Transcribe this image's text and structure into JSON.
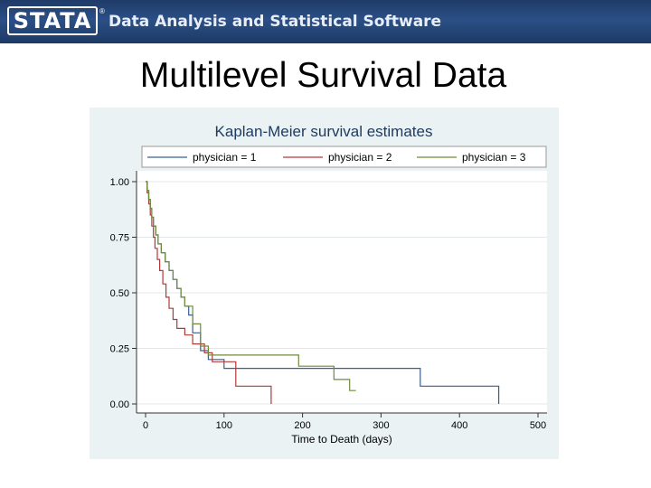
{
  "banner": {
    "logo_text": "STATA",
    "registered_mark": "®",
    "tagline": "Data Analysis and Statistical Software"
  },
  "slide": {
    "title": "Multilevel Survival Data"
  },
  "colors": {
    "banner": "#2b4f86",
    "physician_1": "#3a5f8f",
    "physician_2": "#b03a3a",
    "physician_3": "#6e8b3d",
    "plot_region": "#ffffff",
    "graph_region": "#eaf2f3"
  },
  "chart_data": {
    "type": "line",
    "title": "Kaplan-Meier survival estimates",
    "xlabel": "Time to Death (days)",
    "ylabel": "",
    "xlim": [
      0,
      500
    ],
    "ylim": [
      0,
      1
    ],
    "xticks": [
      0,
      100,
      200,
      300,
      400,
      500
    ],
    "yticks": [
      0,
      0.25,
      0.5,
      0.75,
      1
    ],
    "xtick_labels": [
      "0",
      "100",
      "200",
      "300",
      "400",
      "500"
    ],
    "ytick_labels": [
      "0.00",
      "0.25",
      "0.50",
      "0.75",
      "1.00"
    ],
    "grid": true,
    "legend": "top",
    "series": [
      {
        "name": "physician = 1",
        "x": [
          0,
          2,
          4,
          6,
          8,
          10,
          13,
          16,
          20,
          25,
          30,
          35,
          40,
          45,
          50,
          55,
          60,
          70,
          80,
          100,
          120,
          350,
          450
        ],
        "y": [
          1.0,
          0.96,
          0.92,
          0.88,
          0.84,
          0.8,
          0.76,
          0.72,
          0.68,
          0.64,
          0.6,
          0.56,
          0.52,
          0.48,
          0.44,
          0.4,
          0.32,
          0.24,
          0.2,
          0.16,
          0.16,
          0.08,
          0.0
        ]
      },
      {
        "name": "physician = 2",
        "x": [
          0,
          2,
          4,
          6,
          8,
          10,
          12,
          15,
          18,
          22,
          26,
          30,
          35,
          40,
          50,
          60,
          75,
          85,
          115,
          160
        ],
        "y": [
          1.0,
          0.95,
          0.9,
          0.85,
          0.8,
          0.75,
          0.7,
          0.65,
          0.6,
          0.54,
          0.48,
          0.43,
          0.38,
          0.34,
          0.31,
          0.27,
          0.23,
          0.19,
          0.08,
          0.0
        ]
      },
      {
        "name": "physician = 3",
        "x": [
          0,
          2,
          4,
          6,
          8,
          10,
          13,
          16,
          20,
          25,
          30,
          35,
          40,
          45,
          50,
          60,
          70,
          80,
          195,
          240,
          260,
          268
        ],
        "y": [
          1.0,
          0.96,
          0.92,
          0.88,
          0.84,
          0.8,
          0.76,
          0.72,
          0.68,
          0.64,
          0.6,
          0.56,
          0.52,
          0.48,
          0.44,
          0.36,
          0.26,
          0.22,
          0.17,
          0.11,
          0.06,
          0.06
        ]
      }
    ]
  }
}
